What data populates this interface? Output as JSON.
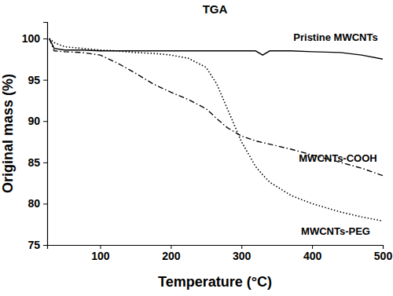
{
  "chart_data": {
    "type": "line",
    "title": "TGA",
    "x_label": "Temperature (°C)",
    "y_label": "Original mass (%)",
    "x": [
      28,
      35,
      50,
      75,
      100,
      125,
      150,
      175,
      200,
      225,
      250,
      265,
      280,
      300,
      320,
      330,
      340,
      370,
      400,
      440,
      470,
      500
    ],
    "series": [
      {
        "name": "Pristine MWCNTs",
        "color": "#000000",
        "line_style": "solid",
        "values": [
          100,
          98.8,
          98.6,
          98.6,
          98.5,
          98.5,
          98.5,
          98.5,
          98.5,
          98.5,
          98.5,
          98.5,
          98.5,
          98.5,
          98.5,
          98.0,
          98.5,
          98.5,
          98.4,
          98.3,
          98.0,
          97.5
        ]
      },
      {
        "name": "MWCNTs-COOH",
        "color": "#000000",
        "line_style": "dashdot",
        "values": [
          100,
          98.5,
          98.4,
          98.3,
          98.0,
          97.0,
          95.8,
          94.5,
          93.5,
          92.6,
          91.5,
          90.3,
          89.2,
          88.2,
          87.6,
          87.4,
          87.2,
          86.6,
          85.9,
          85.0,
          84.3,
          83.4
        ]
      },
      {
        "name": "MWCNTs-PEG",
        "color": "#000000",
        "line_style": "dotted",
        "values": [
          100,
          99.5,
          99.0,
          98.8,
          98.6,
          98.5,
          98.3,
          98.2,
          98.0,
          97.6,
          96.5,
          94.5,
          91.5,
          87.5,
          84.5,
          83.5,
          82.6,
          81.0,
          80.0,
          79.0,
          78.4,
          77.9
        ]
      }
    ],
    "xlim": [
      25,
      500
    ],
    "xticks": [
      100,
      200,
      300,
      400,
      500
    ],
    "ylim": [
      75,
      102
    ],
    "yticks": [
      75,
      80,
      85,
      90,
      95,
      100
    ],
    "grid": false
  }
}
